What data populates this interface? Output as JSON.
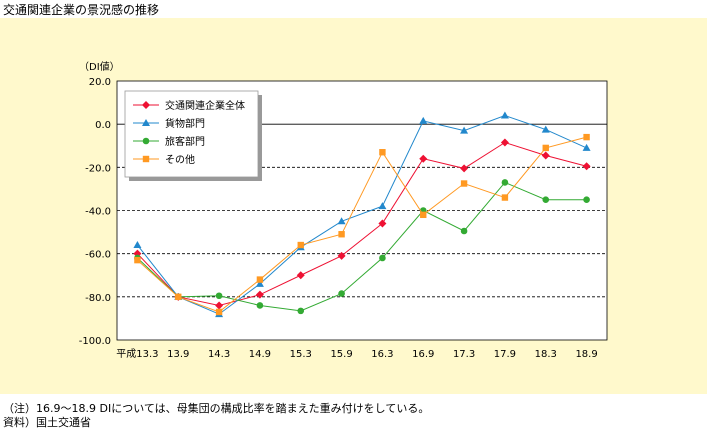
{
  "page_title": "交通関連企業の景況感の推移",
  "notes": {
    "line1": "（注）16.9～18.9 DIについては、母集団の構成比率を踏まえた重み付けをしている。",
    "line2": "資料）国土交通省"
  },
  "colors": {
    "background": "#fff9cc",
    "plot_background": "#ffffff"
  },
  "chart_data": {
    "type": "line",
    "title": "",
    "ylabel": "（DI値）",
    "xlabel": "",
    "ylim": [
      -100,
      20
    ],
    "yticks": [
      20,
      0,
      -20,
      -40,
      -60,
      -80,
      -100
    ],
    "ytick_labels": [
      "20.0",
      "0.0",
      "-20.0",
      "-40.0",
      "-60.0",
      "-80.0",
      "-100.0"
    ],
    "grid": "dashed horizontal at -20, -40, -60, -80; solid at 0",
    "legend_position": "top-left",
    "categories": [
      "平成13.3",
      "13.9",
      "14.3",
      "14.9",
      "15.3",
      "15.9",
      "16.3",
      "16.9",
      "17.3",
      "17.9",
      "18.3",
      "18.9"
    ],
    "series": [
      {
        "name": "交通関連企業全体",
        "color": "#ee1133",
        "marker": "diamond",
        "values": [
          -60,
          -80,
          -84,
          -79,
          -70,
          -61,
          -46,
          -16,
          -20.5,
          -8.5,
          -14.5,
          -19.5
        ]
      },
      {
        "name": "貨物部門",
        "color": "#2288cc",
        "marker": "triangle",
        "values": [
          -56,
          -80,
          -88,
          -74,
          -57,
          -45,
          -38,
          1.5,
          -3,
          4,
          -2.5,
          -11
        ]
      },
      {
        "name": "旅客部門",
        "color": "#33aa33",
        "marker": "circle",
        "values": [
          -62,
          -80,
          -79.5,
          -84,
          -86.5,
          -78.5,
          -62,
          -40,
          -49.5,
          -27,
          -35,
          -35
        ]
      },
      {
        "name": "その他",
        "color": "#ff9922",
        "marker": "square",
        "values": [
          -63,
          -80,
          -87,
          -72,
          -56,
          -51,
          -13,
          -42,
          -27.5,
          -34,
          -11,
          -6
        ]
      }
    ]
  }
}
